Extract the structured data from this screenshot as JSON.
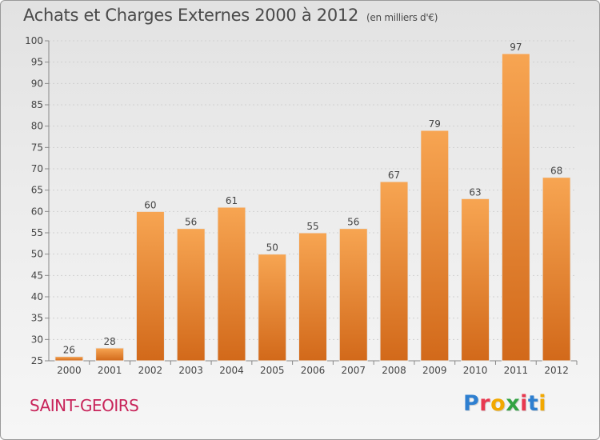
{
  "header": {
    "title": "Achats et Charges Externes 2000 à 2012",
    "subtitle": "(en milliers d'€)"
  },
  "footer": {
    "place": "SAINT-GEOIRS",
    "logo": "Proxiti",
    "logo_colors": [
      "#2e7fd0",
      "#e8384f",
      "#f2a800",
      "#33a343",
      "#e8384f",
      "#2e7fd0",
      "#f2a800"
    ]
  },
  "chart_data": {
    "type": "bar",
    "title": "Achats et Charges Externes 2000 à 2012",
    "subtitle": "(en milliers d'€)",
    "categories": [
      "2000",
      "2001",
      "2002",
      "2003",
      "2004",
      "2005",
      "2006",
      "2007",
      "2008",
      "2009",
      "2010",
      "2011",
      "2012"
    ],
    "values": [
      26,
      28,
      60,
      56,
      61,
      50,
      55,
      56,
      67,
      79,
      63,
      97,
      68
    ],
    "ylim": [
      25,
      100
    ],
    "yticks": [
      25,
      30,
      35,
      40,
      45,
      50,
      55,
      60,
      65,
      70,
      75,
      80,
      85,
      90,
      95,
      100
    ],
    "grid": true,
    "bar_color_top": "#f7a552",
    "bar_color_bottom": "#d2691a"
  }
}
